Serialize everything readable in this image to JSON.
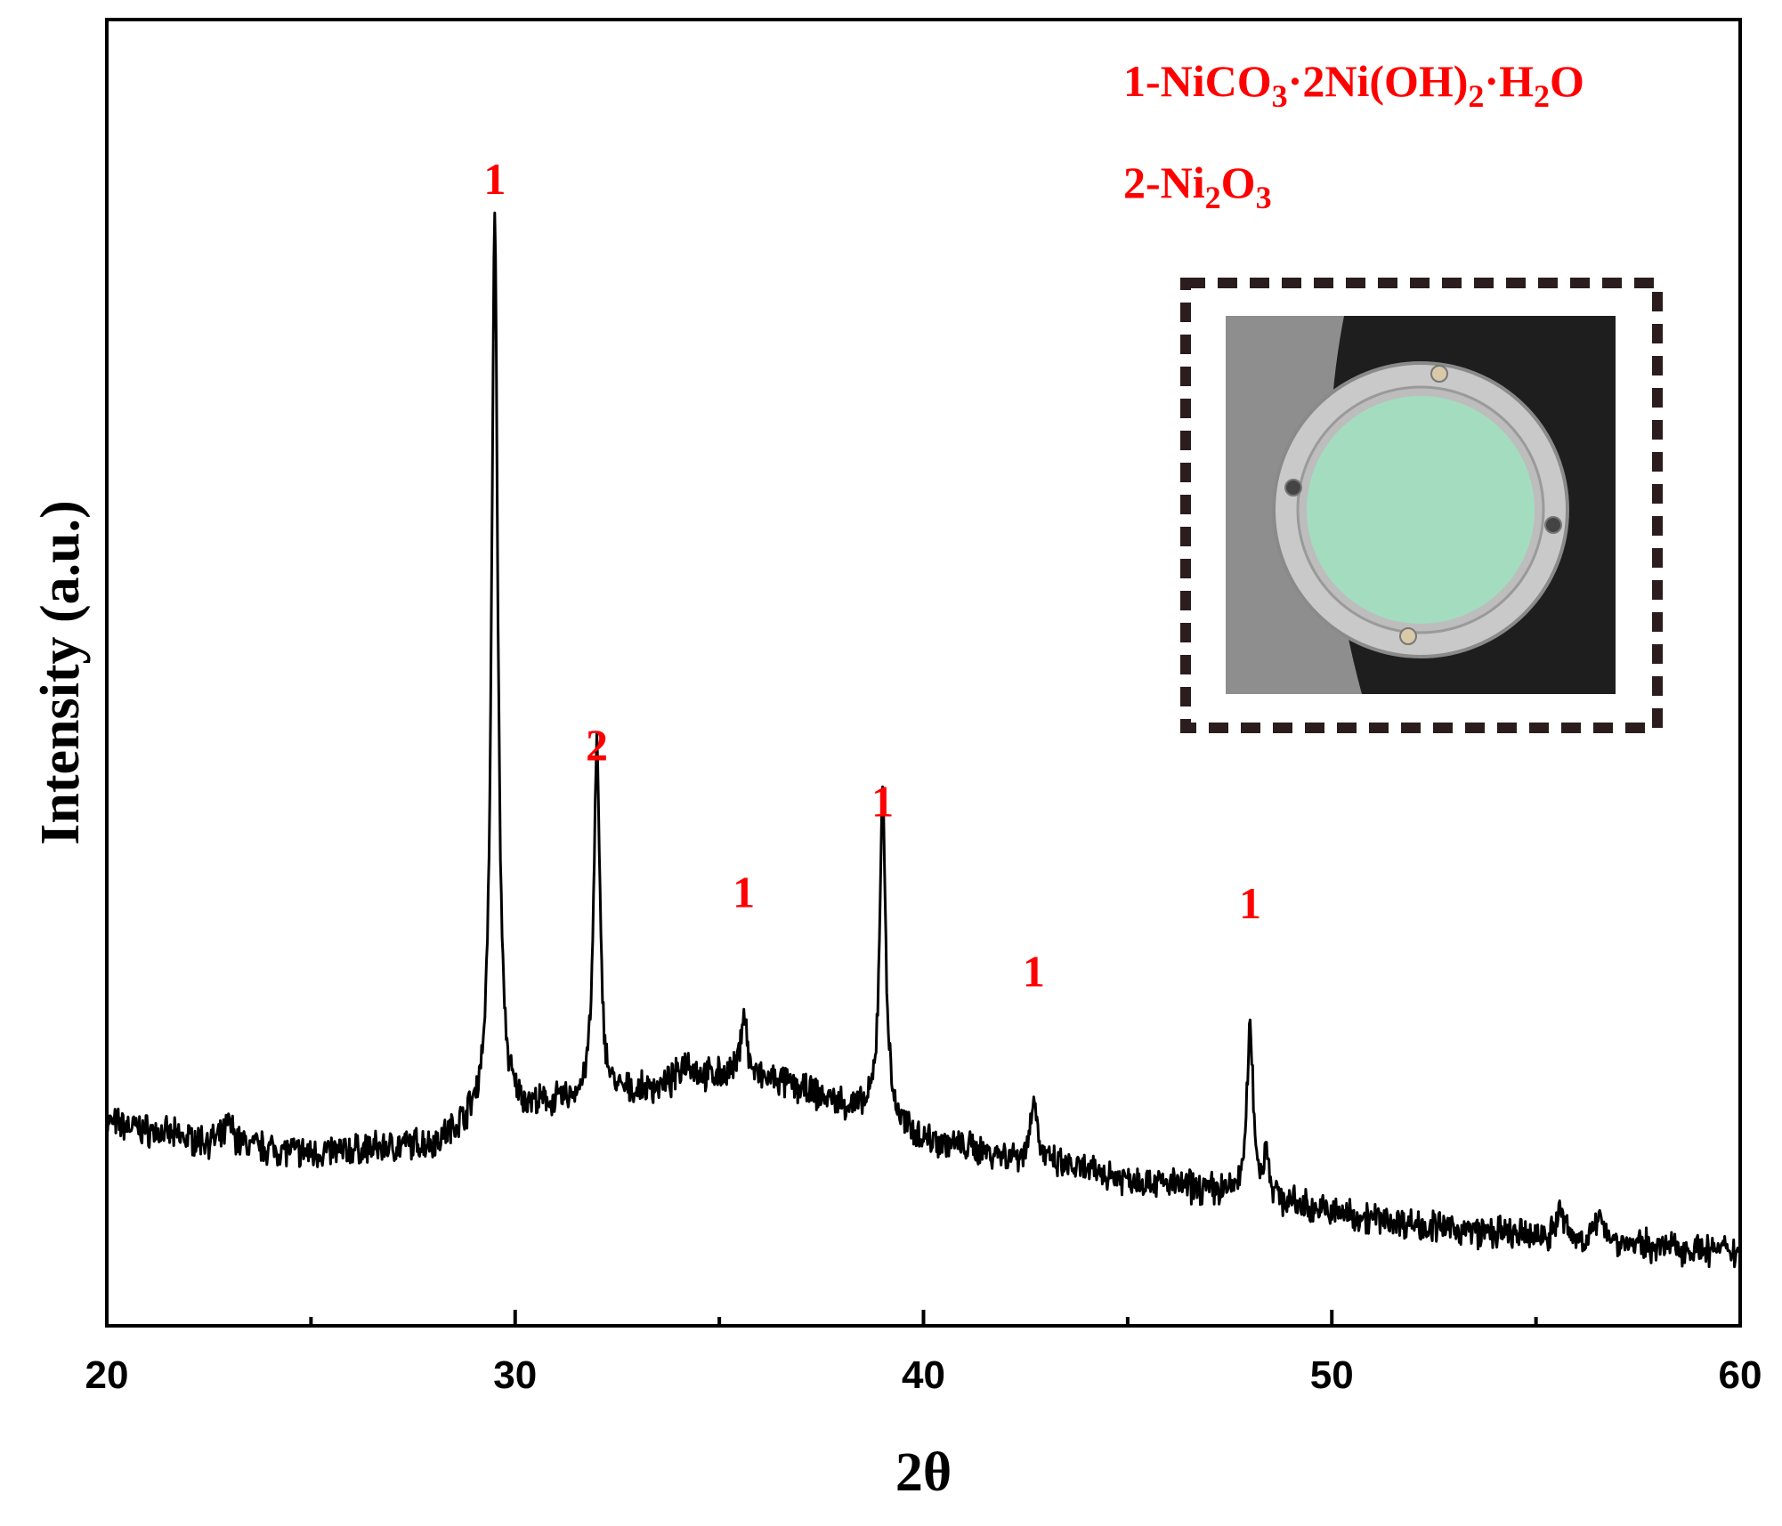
{
  "chart_data": {
    "type": "line",
    "xlabel": "2θ",
    "ylabel": "Intensity (a.u.)",
    "xlim": [
      20,
      60
    ],
    "ylim": [
      0,
      100
    ],
    "x_ticks": [
      "20",
      "30",
      "40",
      "50",
      "60"
    ],
    "y_ticks_shown": false,
    "grid": false,
    "line_color": "#000000",
    "annotation_color": "#ff0000",
    "baseline": [
      {
        "x": 20,
        "y": 18
      },
      {
        "x": 22,
        "y": 16.5
      },
      {
        "x": 25,
        "y": 15.2
      },
      {
        "x": 28,
        "y": 16
      },
      {
        "x": 29,
        "y": 18
      },
      {
        "x": 31,
        "y": 19.5
      },
      {
        "x": 33,
        "y": 20.5
      },
      {
        "x": 35,
        "y": 22
      },
      {
        "x": 36.5,
        "y": 21.5
      },
      {
        "x": 38,
        "y": 19.5
      },
      {
        "x": 40,
        "y": 16.5
      },
      {
        "x": 42,
        "y": 15
      },
      {
        "x": 45,
        "y": 13
      },
      {
        "x": 48,
        "y": 11.5
      },
      {
        "x": 50,
        "y": 10
      },
      {
        "x": 53,
        "y": 8.5
      },
      {
        "x": 56,
        "y": 7.5
      },
      {
        "x": 60,
        "y": 6.5
      }
    ],
    "peaks": [
      {
        "x": 23.0,
        "height": 1.8,
        "width": 0.12
      },
      {
        "x": 29.5,
        "height": 80,
        "width": 0.09
      },
      {
        "x": 32.0,
        "height": 31,
        "width": 0.09
      },
      {
        "x": 34.2,
        "height": 2,
        "width": 0.2
      },
      {
        "x": 35.6,
        "height": 6,
        "width": 0.09
      },
      {
        "x": 39.0,
        "height": 29,
        "width": 0.09
      },
      {
        "x": 42.7,
        "height": 6,
        "width": 0.09
      },
      {
        "x": 48.0,
        "height": 15,
        "width": 0.09
      },
      {
        "x": 48.4,
        "height": 4,
        "width": 0.08
      },
      {
        "x": 55.6,
        "height": 2.5,
        "width": 0.12
      },
      {
        "x": 56.6,
        "height": 2.5,
        "width": 0.12
      }
    ],
    "noise_amplitude": 1.1,
    "peak_labels": [
      {
        "x": 29.5,
        "y": 100,
        "label": "1"
      },
      {
        "x": 32.0,
        "y": 50,
        "label": "2"
      },
      {
        "x": 35.6,
        "y": 37,
        "label": "1"
      },
      {
        "x": 39.0,
        "y": 45,
        "label": "1"
      },
      {
        "x": 42.7,
        "y": 30,
        "label": "1"
      },
      {
        "x": 48.0,
        "y": 36,
        "label": "1"
      }
    ],
    "legend": {
      "placement": "top-right",
      "entries": [
        {
          "parts": [
            [
              "1-NiCO",
              ""
            ],
            [
              "3",
              "sub"
            ],
            [
              "·2Ni(OH)",
              ""
            ],
            [
              "2",
              "sub"
            ],
            [
              "·H",
              ""
            ],
            [
              "2",
              "sub"
            ],
            [
              "O",
              ""
            ]
          ]
        },
        {
          "parts": [
            [
              "2-Ni",
              ""
            ],
            [
              "2",
              "sub"
            ],
            [
              "O",
              ""
            ],
            [
              "3",
              "sub"
            ]
          ]
        }
      ]
    },
    "inset": {
      "frame_style": "dashed",
      "frame_color": "#2b1d1d",
      "sample_color": "#a4dcc0",
      "ring_color": "#c9c9c9",
      "holder_color": "#1e1e1e",
      "background_color": "#8e8e8e"
    }
  }
}
